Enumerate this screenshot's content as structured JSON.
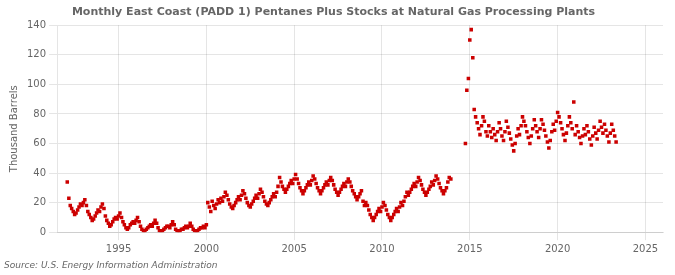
{
  "chart_data": {
    "type": "scatter",
    "title": "Monthly East Coast (PADD 1) Pentanes Plus Stocks at Natural Gas Processing Plants",
    "ylabel": "Thousand Barrels",
    "annotation": "Source: U.S. Energy Information Administration",
    "color": "#cc0000",
    "marker": "square",
    "grid": true,
    "xlim": [
      1991.5,
      2026
    ],
    "ylim": [
      0,
      140
    ],
    "xticks": [
      1995,
      2000,
      2005,
      2010,
      2015,
      2020,
      2025
    ],
    "yticks": [
      0,
      20,
      40,
      60,
      80,
      100,
      120,
      140
    ],
    "x": [
      1992.08,
      1992.17,
      1992.25,
      1992.33,
      1992.42,
      1992.5,
      1992.58,
      1992.67,
      1992.75,
      1992.83,
      1992.92,
      1993.0,
      1993.08,
      1993.17,
      1993.25,
      1993.33,
      1993.42,
      1993.5,
      1993.58,
      1993.67,
      1993.75,
      1993.83,
      1993.92,
      1994.0,
      1994.08,
      1994.17,
      1994.25,
      1994.33,
      1994.42,
      1994.5,
      1994.58,
      1994.67,
      1994.75,
      1994.83,
      1994.92,
      1995.0,
      1995.08,
      1995.17,
      1995.25,
      1995.33,
      1995.42,
      1995.5,
      1995.58,
      1995.67,
      1995.75,
      1995.83,
      1995.92,
      1996.0,
      1996.08,
      1996.17,
      1996.25,
      1996.33,
      1996.42,
      1996.5,
      1996.58,
      1996.67,
      1996.75,
      1996.83,
      1996.92,
      1997.0,
      1997.08,
      1997.17,
      1997.25,
      1997.33,
      1997.42,
      1997.5,
      1997.58,
      1997.67,
      1997.75,
      1997.83,
      1997.92,
      1998.0,
      1998.08,
      1998.17,
      1998.25,
      1998.33,
      1998.42,
      1998.5,
      1998.58,
      1998.67,
      1998.75,
      1998.83,
      1998.92,
      1999.0,
      1999.08,
      1999.17,
      1999.25,
      1999.33,
      1999.42,
      1999.5,
      1999.58,
      1999.67,
      1999.75,
      1999.83,
      1999.92,
      2000.0,
      2000.08,
      2000.17,
      2000.25,
      2000.33,
      2000.42,
      2000.5,
      2000.58,
      2000.67,
      2000.75,
      2000.83,
      2000.92,
      2001.0,
      2001.08,
      2001.17,
      2001.25,
      2001.33,
      2001.42,
      2001.5,
      2001.58,
      2001.67,
      2001.75,
      2001.83,
      2001.92,
      2002.0,
      2002.08,
      2002.17,
      2002.25,
      2002.33,
      2002.42,
      2002.5,
      2002.58,
      2002.67,
      2002.75,
      2002.83,
      2002.92,
      2003.0,
      2003.08,
      2003.17,
      2003.25,
      2003.33,
      2003.42,
      2003.5,
      2003.58,
      2003.67,
      2003.75,
      2003.83,
      2003.92,
      2004.0,
      2004.08,
      2004.17,
      2004.25,
      2004.33,
      2004.42,
      2004.5,
      2004.58,
      2004.67,
      2004.75,
      2004.83,
      2004.92,
      2005.0,
      2005.08,
      2005.17,
      2005.25,
      2005.33,
      2005.42,
      2005.5,
      2005.58,
      2005.67,
      2005.75,
      2005.83,
      2005.92,
      2006.0,
      2006.08,
      2006.17,
      2006.25,
      2006.33,
      2006.42,
      2006.5,
      2006.58,
      2006.67,
      2006.75,
      2006.83,
      2006.92,
      2007.0,
      2007.08,
      2007.17,
      2007.25,
      2007.33,
      2007.42,
      2007.5,
      2007.58,
      2007.67,
      2007.75,
      2007.83,
      2007.92,
      2008.0,
      2008.08,
      2008.17,
      2008.25,
      2008.33,
      2008.42,
      2008.5,
      2008.58,
      2008.67,
      2008.75,
      2008.83,
      2008.92,
      2009.0,
      2009.08,
      2009.17,
      2009.25,
      2009.33,
      2009.42,
      2009.5,
      2009.58,
      2009.67,
      2009.75,
      2009.83,
      2009.92,
      2010.0,
      2010.08,
      2010.17,
      2010.25,
      2010.33,
      2010.42,
      2010.5,
      2010.58,
      2010.67,
      2010.75,
      2010.83,
      2010.92,
      2011.0,
      2011.08,
      2011.17,
      2011.25,
      2011.33,
      2011.42,
      2011.5,
      2011.58,
      2011.67,
      2011.75,
      2011.83,
      2011.92,
      2012.0,
      2012.08,
      2012.17,
      2012.25,
      2012.33,
      2012.42,
      2012.5,
      2012.58,
      2012.67,
      2012.75,
      2012.83,
      2012.92,
      2013.0,
      2013.08,
      2013.17,
      2013.25,
      2013.33,
      2013.42,
      2013.5,
      2013.58,
      2013.67,
      2013.75,
      2013.83,
      2013.92,
      2014.75,
      2014.83,
      2014.92,
      2015.0,
      2015.08,
      2015.17,
      2015.25,
      2015.33,
      2015.42,
      2015.5,
      2015.58,
      2015.67,
      2015.75,
      2015.83,
      2015.92,
      2016.0,
      2016.08,
      2016.17,
      2016.25,
      2016.33,
      2016.42,
      2016.5,
      2016.58,
      2016.67,
      2016.75,
      2016.83,
      2016.92,
      2017.0,
      2017.08,
      2017.17,
      2017.25,
      2017.33,
      2017.42,
      2017.5,
      2017.58,
      2017.67,
      2017.75,
      2017.83,
      2017.92,
      2018.0,
      2018.08,
      2018.17,
      2018.25,
      2018.33,
      2018.42,
      2018.5,
      2018.58,
      2018.67,
      2018.75,
      2018.83,
      2018.92,
      2019.0,
      2019.08,
      2019.17,
      2019.25,
      2019.33,
      2019.42,
      2019.5,
      2019.58,
      2019.67,
      2019.75,
      2019.83,
      2019.92,
      2020.0,
      2020.08,
      2020.17,
      2020.25,
      2020.33,
      2020.42,
      2020.5,
      2020.58,
      2020.67,
      2020.75,
      2020.83,
      2020.92,
      2021.0,
      2021.08,
      2021.17,
      2021.25,
      2021.33,
      2021.42,
      2021.5,
      2021.58,
      2021.67,
      2021.75,
      2021.83,
      2021.92,
      2022.0,
      2022.08,
      2022.17,
      2022.25,
      2022.33,
      2022.42,
      2022.5,
      2022.58,
      2022.67,
      2022.75,
      2022.83,
      2022.92,
      2023.0,
      2023.08,
      2023.17,
      2023.25,
      2023.33
    ],
    "values": [
      34,
      23,
      18,
      16,
      14,
      12,
      13,
      15,
      17,
      19,
      18,
      20,
      22,
      18,
      14,
      12,
      10,
      8,
      9,
      11,
      13,
      15,
      14,
      17,
      19,
      16,
      11,
      8,
      6,
      4,
      5,
      7,
      9,
      10,
      9,
      11,
      13,
      10,
      7,
      5,
      3,
      2,
      3,
      5,
      6,
      7,
      6,
      8,
      10,
      7,
      4,
      2,
      1,
      1,
      2,
      3,
      4,
      5,
      4,
      6,
      8,
      6,
      3,
      1,
      1,
      1,
      2,
      3,
      4,
      4,
      3,
      5,
      7,
      5,
      2,
      1,
      1,
      1,
      2,
      2,
      3,
      4,
      3,
      4,
      6,
      4,
      2,
      1,
      1,
      1,
      2,
      3,
      3,
      4,
      3,
      5,
      20,
      17,
      14,
      21,
      18,
      16,
      19,
      22,
      20,
      23,
      21,
      24,
      27,
      25,
      22,
      19,
      17,
      16,
      18,
      20,
      22,
      24,
      22,
      25,
      28,
      26,
      23,
      20,
      18,
      17,
      19,
      21,
      23,
      25,
      23,
      26,
      29,
      27,
      24,
      21,
      19,
      18,
      20,
      22,
      24,
      26,
      24,
      27,
      31,
      37,
      34,
      31,
      29,
      27,
      29,
      31,
      33,
      35,
      33,
      36,
      39,
      36,
      33,
      30,
      28,
      26,
      28,
      30,
      32,
      34,
      32,
      35,
      38,
      36,
      33,
      30,
      28,
      26,
      28,
      30,
      32,
      34,
      32,
      35,
      37,
      35,
      32,
      29,
      27,
      25,
      27,
      29,
      31,
      33,
      31,
      34,
      36,
      34,
      31,
      28,
      26,
      24,
      22,
      24,
      26,
      28,
      21,
      18,
      20,
      18,
      15,
      12,
      10,
      8,
      10,
      12,
      14,
      16,
      14,
      17,
      20,
      18,
      15,
      12,
      10,
      8,
      10,
      12,
      14,
      16,
      14,
      17,
      20,
      18,
      21,
      24,
      27,
      25,
      27,
      29,
      31,
      33,
      31,
      34,
      37,
      35,
      32,
      29,
      27,
      25,
      27,
      29,
      31,
      34,
      32,
      35,
      38,
      36,
      33,
      30,
      28,
      26,
      28,
      30,
      34,
      37,
      36,
      60,
      96,
      104,
      130,
      137,
      118,
      83,
      78,
      74,
      70,
      66,
      72,
      78,
      75,
      68,
      65,
      72,
      68,
      64,
      70,
      66,
      62,
      68,
      74,
      70,
      65,
      62,
      68,
      75,
      71,
      67,
      63,
      59,
      55,
      60,
      65,
      70,
      66,
      72,
      78,
      75,
      72,
      68,
      64,
      60,
      65,
      70,
      76,
      72,
      68,
      64,
      70,
      76,
      73,
      69,
      65,
      61,
      57,
      62,
      68,
      73,
      69,
      75,
      81,
      78,
      74,
      70,
      66,
      62,
      67,
      72,
      78,
      74,
      70,
      88,
      66,
      72,
      68,
      64,
      60,
      65,
      70,
      66,
      72,
      68,
      63,
      59,
      65,
      71,
      67,
      63,
      69,
      75,
      71,
      67,
      73,
      69,
      65,
      61,
      67,
      73,
      69,
      65,
      61
    ]
  }
}
